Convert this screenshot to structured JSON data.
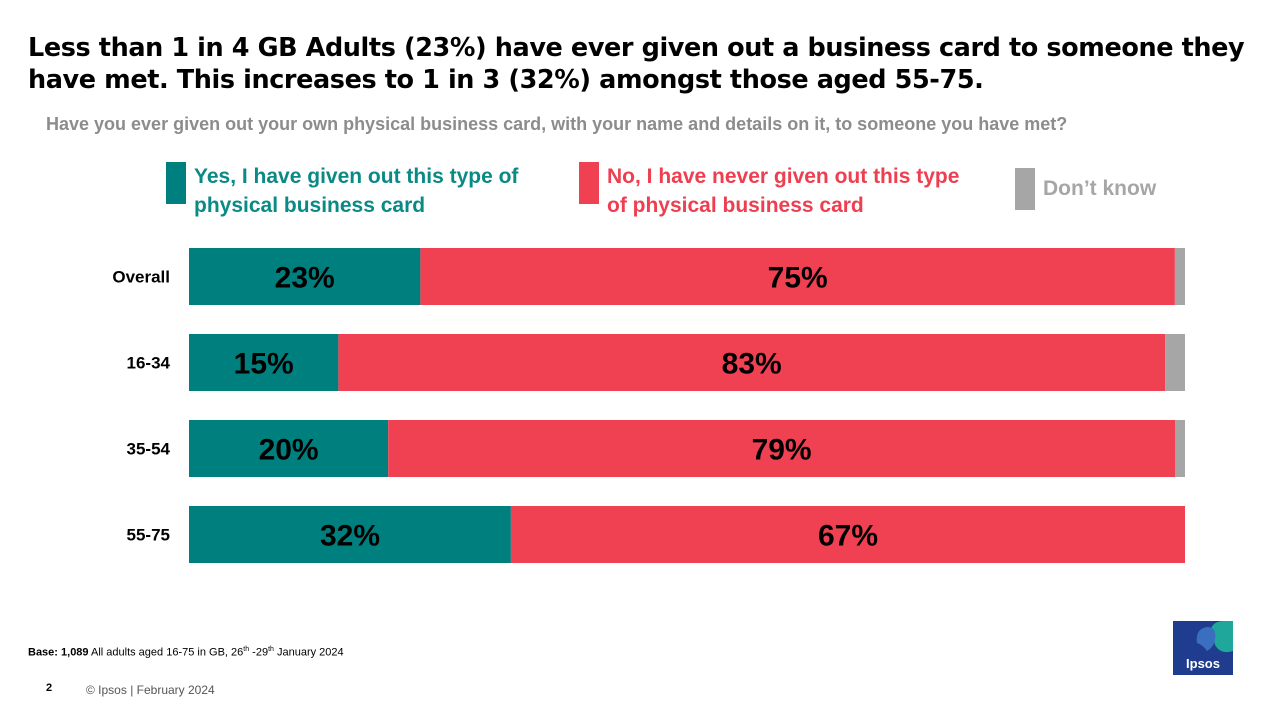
{
  "headline": "Less than 1 in 4 GB Adults (23%) have ever given out a business card to someone they have met. This increases to 1 in 3 (32%) amongst those aged 55-75.",
  "question": "Have you ever given out your own physical business card, with your name and details on it, to someone you have met?",
  "legend": [
    {
      "label": "Yes, I have given out this type of physical business card",
      "color": "#007f7f",
      "text_color": "#0a8a85"
    },
    {
      "label": "No, I have never given out this type of physical business card",
      "color": "#f04152",
      "text_color": "#ee3f51"
    },
    {
      "label": "Don’t know",
      "color": "#a6a6a6",
      "text_color": "#a6a6a6"
    }
  ],
  "chart_data": {
    "type": "bar",
    "orientation": "horizontal",
    "stacked": true,
    "categories": [
      "Overall",
      "16-34",
      "35-54",
      "55-75"
    ],
    "series": [
      {
        "name": "Yes, I have given out this type of physical business card",
        "values": [
          23,
          15,
          20,
          32
        ],
        "labels": [
          "23%",
          "15%",
          "20%",
          "32%"
        ],
        "color": "#007f7f"
      },
      {
        "name": "No, I have never given out this type of physical business card",
        "values": [
          75,
          83,
          79,
          67
        ],
        "labels": [
          "75%",
          "83%",
          "79%",
          "67%"
        ],
        "color": "#f04152"
      },
      {
        "name": "Don’t know",
        "values": [
          1,
          2,
          1,
          0
        ],
        "color": "#a6a6a6"
      }
    ],
    "xlim": [
      0,
      100
    ],
    "grid": false,
    "legend": "top"
  },
  "footer": {
    "base_bold": "Base: 1,089",
    "base_rest": " All  adults aged 16-75 in GB, 26",
    "base_sup1": "th",
    "base_mid": " -29",
    "base_sup2": "th",
    "base_end": " January 2024",
    "page_number": "2",
    "copyright": "© Ipsos  |  February  2024",
    "logo_text": "Ipsos"
  }
}
